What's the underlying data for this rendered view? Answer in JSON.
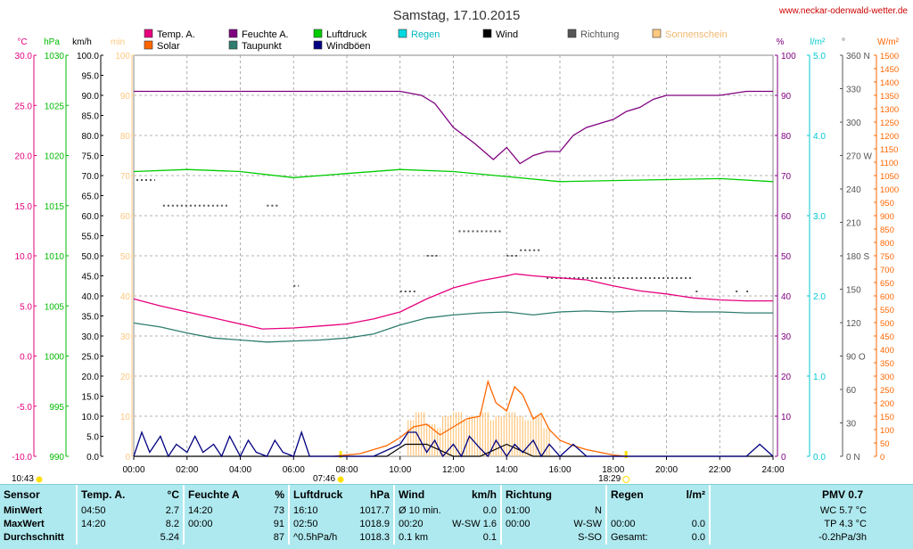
{
  "header": {
    "title": "Samstag, 17.10.2015",
    "site": "www.neckar-odenwald-wetter.de"
  },
  "legend": [
    {
      "label": "Temp. A.",
      "color": "#e6007e"
    },
    {
      "label": "Solar",
      "color": "#ff6600"
    },
    {
      "label": "Feuchte A.",
      "color": "#800080"
    },
    {
      "label": "Taupunkt",
      "color": "#2e7d6e"
    },
    {
      "label": "Luftdruck",
      "color": "#00cc00"
    },
    {
      "label": "Windböen",
      "color": "#000080"
    },
    {
      "label": "Regen",
      "color": "#00d8e0"
    },
    {
      "label": "Wind",
      "color": "#000000"
    },
    {
      "label": "Richtung",
      "color": "#555555"
    },
    {
      "label": "Sonnenschein",
      "color": "#ffc880"
    }
  ],
  "axes": {
    "temp": {
      "unit": "°C",
      "ticks": [
        "30.0",
        "25.0",
        "20.0",
        "15.0",
        "10.0",
        "5.0",
        "0.0",
        "-5.0",
        "-10.0"
      ],
      "color": "#e6007e"
    },
    "pressure": {
      "unit": "hPa",
      "ticks": [
        "1030",
        "1025",
        "1020",
        "1015",
        "1010",
        "1005",
        "1000",
        "995",
        "990"
      ],
      "color": "#00bb00"
    },
    "wind": {
      "unit": "km/h",
      "ticks": [
        "100.0",
        "95.0",
        "90.0",
        "85.0",
        "80.0",
        "75.0",
        "70.0",
        "65.0",
        "60.0",
        "55.0",
        "50.0",
        "45.0",
        "40.0",
        "35.0",
        "30.0",
        "25.0",
        "20.0",
        "15.0",
        "10.0",
        "5.0",
        "0.0"
      ],
      "color": "#000000"
    },
    "sunshine": {
      "unit": "min",
      "ticks": [
        "100",
        "90",
        "80",
        "70",
        "60",
        "50",
        "40",
        "30",
        "20",
        "10",
        "0"
      ],
      "color": "#ffc880"
    },
    "humidity": {
      "unit": "%",
      "ticks": [
        "100",
        "90",
        "80",
        "70",
        "60",
        "50",
        "40",
        "30",
        "20",
        "10",
        "0"
      ],
      "color": "#800080"
    },
    "rain": {
      "unit": "l/m²",
      "ticks": [
        "5.0",
        "4.0",
        "3.0",
        "2.0",
        "1.0",
        "0.0"
      ],
      "color": "#00c8d0"
    },
    "direction": {
      "unit": "°",
      "ticks": [
        "360 N",
        "330",
        "300",
        "270 W",
        "240",
        "210",
        "180 S",
        "150",
        "120",
        "90 O",
        "60",
        "30",
        "0 N"
      ],
      "color": "#555555"
    },
    "solar": {
      "unit": "W/m²",
      "ticks": [
        "1500",
        "1450",
        "1400",
        "1350",
        "1300",
        "1250",
        "1200",
        "1150",
        "1100",
        "1050",
        "1000",
        "950",
        "900",
        "850",
        "800",
        "750",
        "700",
        "650",
        "600",
        "550",
        "500",
        "450",
        "400",
        "350",
        "300",
        "250",
        "200",
        "150",
        "100",
        "50",
        "0"
      ],
      "color": "#ff6600"
    },
    "time_ticks": [
      "00:00",
      "02:00",
      "04:00",
      "06:00",
      "08:00",
      "10:00",
      "12:00",
      "14:00",
      "16:00",
      "18:00",
      "20:00",
      "22:00",
      "24:00"
    ]
  },
  "sun_markers": {
    "moonrise": "10:43",
    "sunrise": "07:46",
    "sunset": "18:29"
  },
  "chart_data": {
    "type": "line",
    "x_unit": "hour of day",
    "xlim": [
      0,
      24
    ],
    "series": [
      {
        "name": "Temp. A.",
        "unit": "°C",
        "color": "#e6007e",
        "x": [
          0,
          1,
          2,
          3,
          4,
          4.83,
          6,
          7,
          8,
          9,
          10,
          11,
          12,
          13,
          14,
          14.33,
          15,
          16,
          17,
          18,
          19,
          20,
          21,
          22,
          23,
          24
        ],
        "y": [
          5.7,
          5.0,
          4.4,
          3.8,
          3.2,
          2.7,
          2.8,
          3.0,
          3.2,
          3.7,
          4.4,
          5.7,
          6.8,
          7.5,
          8.0,
          8.2,
          8.0,
          7.8,
          7.6,
          7.0,
          6.5,
          6.2,
          5.8,
          5.6,
          5.5,
          5.5
        ]
      },
      {
        "name": "Taupunkt",
        "unit": "°C",
        "color": "#2e7d6e",
        "x": [
          0,
          1,
          2,
          3,
          4,
          5,
          6,
          7,
          8,
          9,
          10,
          11,
          12,
          13,
          14,
          15,
          16,
          17,
          18,
          19,
          20,
          21,
          22,
          23,
          24
        ],
        "y": [
          3.3,
          2.9,
          2.3,
          1.8,
          1.6,
          1.4,
          1.5,
          1.6,
          1.8,
          2.2,
          3.1,
          3.8,
          4.1,
          4.3,
          4.4,
          4.1,
          4.4,
          4.5,
          4.4,
          4.5,
          4.5,
          4.4,
          4.4,
          4.3,
          4.3
        ]
      },
      {
        "name": "Feuchte A.",
        "unit": "%",
        "color": "#800080",
        "x": [
          0,
          2,
          4,
          6,
          8,
          10,
          10.8,
          11.3,
          12,
          12.8,
          13.5,
          14,
          14.5,
          15,
          15.5,
          16,
          16.5,
          17,
          17.5,
          18,
          18.5,
          19,
          19.5,
          20,
          21,
          22,
          23,
          24
        ],
        "y": [
          91,
          91,
          91,
          91,
          91,
          91,
          90,
          88,
          82,
          78,
          74,
          77,
          73,
          75,
          76,
          76,
          80,
          82,
          83,
          84,
          86,
          87,
          89,
          90,
          90,
          90,
          91,
          91
        ]
      },
      {
        "name": "Luftdruck",
        "unit": "hPa",
        "color": "#00cc00",
        "x": [
          0,
          2,
          4,
          6,
          8,
          10,
          12,
          14,
          16,
          18,
          20,
          22,
          24
        ],
        "y": [
          1018.4,
          1018.6,
          1018.4,
          1017.8,
          1018.2,
          1018.6,
          1018.4,
          1017.9,
          1017.4,
          1017.5,
          1017.6,
          1017.7,
          1017.4
        ]
      },
      {
        "name": "Solar",
        "unit": "W/m²",
        "color": "#ff6600",
        "x": [
          7.5,
          8.5,
          9,
          9.5,
          10,
          10.5,
          11,
          11.5,
          12,
          12.5,
          13,
          13.3,
          13.6,
          14,
          14.3,
          14.6,
          15,
          15.3,
          15.6,
          16,
          16.5,
          17,
          17.5,
          18,
          18.5
        ],
        "y": [
          0,
          10,
          25,
          40,
          70,
          110,
          120,
          80,
          110,
          140,
          150,
          280,
          200,
          170,
          260,
          230,
          140,
          160,
          100,
          60,
          40,
          25,
          15,
          5,
          0
        ]
      },
      {
        "name": "Wind",
        "unit": "km/h",
        "color": "#000000",
        "x": [
          0,
          2,
          4,
          6,
          8,
          9.5,
          10.2,
          11,
          12,
          13,
          14,
          15,
          16,
          17,
          18,
          20,
          22,
          23,
          24
        ],
        "y": [
          0,
          0,
          0,
          0,
          0,
          0,
          3,
          3,
          0,
          0,
          3,
          0,
          0,
          0,
          0,
          0,
          0,
          0,
          0
        ]
      },
      {
        "name": "Windböen",
        "unit": "km/h",
        "color": "#000080",
        "x": [
          0,
          0.3,
          0.6,
          1,
          1.3,
          1.6,
          2,
          2.3,
          2.6,
          3,
          3.3,
          3.6,
          4,
          4.3,
          4.6,
          5,
          5.3,
          5.6,
          6,
          6.3,
          6.6,
          7,
          8,
          9,
          10,
          10.3,
          10.6,
          11,
          11.3,
          11.6,
          12,
          12.3,
          12.6,
          13,
          13.3,
          13.6,
          14,
          14.3,
          14.6,
          15,
          15.3,
          15.6,
          16,
          16.5,
          17,
          18,
          19,
          20,
          21,
          22,
          23,
          23.5,
          24
        ],
        "y": [
          0,
          6,
          1,
          5,
          0,
          3,
          1,
          5,
          1,
          3,
          0,
          5,
          0,
          4,
          1,
          0,
          4,
          1,
          0,
          6,
          0,
          0,
          0,
          0,
          3,
          6,
          6,
          1,
          4,
          0,
          3,
          0,
          5,
          2,
          0,
          4,
          0,
          3,
          1,
          4,
          0,
          3,
          0,
          3,
          0,
          0,
          0,
          0,
          0,
          0,
          0,
          3,
          0
        ]
      }
    ],
    "sunshine_minutes": {
      "unit": "min",
      "x": [
        10.3,
        10.6,
        11,
        11.3,
        11.6,
        12,
        12.3,
        12.6,
        13,
        13.3,
        13.6,
        14,
        14.3,
        14.6,
        15,
        15.3
      ],
      "y": [
        9,
        11,
        8,
        7,
        10,
        11,
        9,
        10,
        11,
        9,
        10,
        11,
        10,
        9,
        10,
        7
      ]
    },
    "direction": {
      "unit": "°",
      "segments": [
        {
          "from": 0.1,
          "to": 0.8,
          "y": 248
        },
        {
          "from": 1.1,
          "to": 3.6,
          "y": 225
        },
        {
          "from": 5,
          "to": 5.5,
          "y": 225
        },
        {
          "from": 6,
          "to": 6.2,
          "y": 153
        },
        {
          "from": 10,
          "to": 10.6,
          "y": 148
        },
        {
          "from": 11,
          "to": 11.4,
          "y": 180
        },
        {
          "from": 12.2,
          "to": 13.8,
          "y": 202
        },
        {
          "from": 14,
          "to": 14.4,
          "y": 180
        },
        {
          "from": 14.5,
          "to": 15.3,
          "y": 185
        },
        {
          "from": 15.5,
          "to": 21,
          "y": 160
        },
        {
          "from": 21.1,
          "to": 21.2,
          "y": 148
        },
        {
          "from": 22.6,
          "to": 22.7,
          "y": 148
        },
        {
          "from": 23,
          "to": 23.1,
          "y": 148
        }
      ]
    }
  },
  "stats": {
    "head": {
      "sensor": "Sensor",
      "temp": "Temp. A.",
      "temp_unit": "°C",
      "hum": "Feuchte A.",
      "hum_unit": "%",
      "press": "Luftdruck",
      "press_unit": "hPa",
      "wind": "Wind",
      "wind_unit": "km/h",
      "dir": "Richtung",
      "rain": "Regen",
      "rain_unit": "l/m²",
      "pmv": "PMV 0.7"
    },
    "min": {
      "label": "MinWert",
      "temp_time": "04:50",
      "temp": "2.7",
      "hum_time": "14:20",
      "hum": "73",
      "press_time": "16:10",
      "press": "1017.7",
      "wind_time": "Ø 10 min.",
      "wind": "0.0",
      "dir_time": "01:00",
      "dir": "N",
      "rain_time": "",
      "rain": "",
      "pmv": "WC 5.7 °C"
    },
    "max": {
      "label": "MaxWert",
      "temp_time": "14:20",
      "temp": "8.2",
      "hum_time": "00:00",
      "hum": "91",
      "press_time": "02:50",
      "press": "1018.9",
      "wind_time": "00:20",
      "wind": "W-SW 1.6",
      "dir_time": "00:00",
      "dir": "W-SW",
      "rain_time": "00:00",
      "rain": "0.0",
      "pmv": "TP 4.3 °C"
    },
    "avg": {
      "label": "Durchschnitt",
      "temp_time": "",
      "temp": "5.24",
      "hum_time": "",
      "hum": "87",
      "press_time": "^0.5hPa/h",
      "press": "1018.3",
      "wind_time": "0.1 km",
      "wind": "0.1",
      "dir_time": "",
      "dir": "S-SO",
      "rain_time": "Gesamt:",
      "rain": "0.0",
      "pmv": "-0.2hPa/3h"
    }
  }
}
